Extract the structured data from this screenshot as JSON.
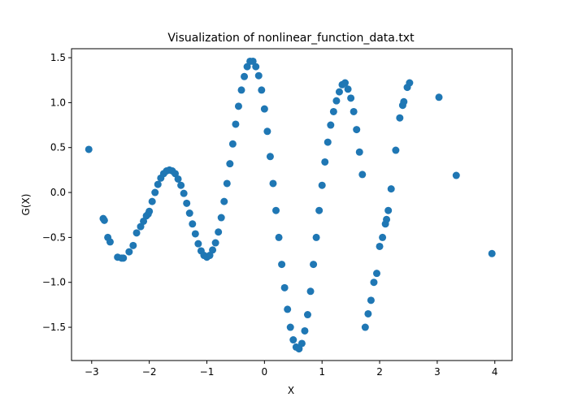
{
  "chart_data": {
    "type": "scatter",
    "title": "Visualization of nonlinear_function_data.txt",
    "xlabel": "X",
    "ylabel": "G(X)",
    "xlim": [
      -3.35,
      4.3
    ],
    "ylim": [
      -1.87,
      1.6
    ],
    "xticks": [
      -3,
      -2,
      -1,
      0,
      1,
      2,
      3,
      4
    ],
    "xtick_labels": [
      "−3",
      "−2",
      "−1",
      "0",
      "1",
      "2",
      "3",
      "4"
    ],
    "yticks": [
      -1.5,
      -1.0,
      -0.5,
      0.0,
      0.5,
      1.0,
      1.5
    ],
    "ytick_labels": [
      "−1.5",
      "−1.0",
      "−0.5",
      "0.0",
      "0.5",
      "1.0",
      "1.5"
    ],
    "grid": false,
    "marker_color": "#1f77b4",
    "series": [
      {
        "x": [
          -3.05,
          -2.8,
          -2.78,
          -2.72,
          -2.68,
          -2.55,
          -2.48,
          -2.45,
          -2.35,
          -2.28,
          -2.22,
          -2.15,
          -2.1,
          -2.05,
          -2.02,
          -2.0,
          -1.95,
          -1.9,
          -1.85,
          -1.8,
          -1.75,
          -1.7,
          -1.65,
          -1.6,
          -1.55,
          -1.5,
          -1.45,
          -1.4,
          -1.35,
          -1.3,
          -1.25,
          -1.2,
          -1.15,
          -1.1,
          -1.05,
          -1.0,
          -0.95,
          -0.9,
          -0.85,
          -0.8,
          -0.75,
          -0.7,
          -0.65,
          -0.6,
          -0.55,
          -0.5,
          -0.45,
          -0.4,
          -0.35,
          -0.3,
          -0.25,
          -0.2,
          -0.15,
          -0.1,
          -0.05,
          0.0,
          0.05,
          0.1,
          0.15,
          0.2,
          0.25,
          0.3,
          0.35,
          0.4,
          0.45,
          0.5,
          0.55,
          0.6,
          0.65,
          0.7,
          0.75,
          0.8,
          0.85,
          0.9,
          0.95,
          1.0,
          1.05,
          1.1,
          1.15,
          1.2,
          1.25,
          1.3,
          1.35,
          1.4,
          1.45,
          1.5,
          1.55,
          1.6,
          1.65,
          1.7,
          1.75,
          1.8,
          1.85,
          1.9,
          1.95,
          2.0,
          2.05,
          2.1,
          2.12,
          2.15,
          2.2,
          2.28,
          2.35,
          2.4,
          2.42,
          2.48,
          2.52,
          3.03,
          3.33,
          3.95
        ],
        "y": [
          0.48,
          -0.29,
          -0.31,
          -0.5,
          -0.55,
          -0.72,
          -0.73,
          -0.73,
          -0.66,
          -0.59,
          -0.45,
          -0.38,
          -0.32,
          -0.26,
          -0.24,
          -0.21,
          -0.1,
          0.0,
          0.09,
          0.16,
          0.21,
          0.24,
          0.25,
          0.24,
          0.21,
          0.15,
          0.08,
          -0.01,
          -0.12,
          -0.23,
          -0.35,
          -0.46,
          -0.57,
          -0.65,
          -0.7,
          -0.72,
          -0.7,
          -0.64,
          -0.56,
          -0.44,
          -0.28,
          -0.1,
          0.1,
          0.32,
          0.54,
          0.76,
          0.96,
          1.14,
          1.29,
          1.4,
          1.46,
          1.46,
          1.4,
          1.3,
          1.14,
          0.93,
          0.68,
          0.4,
          0.1,
          -0.2,
          -0.5,
          -0.8,
          -1.06,
          -1.3,
          -1.5,
          -1.64,
          -1.72,
          -1.74,
          -1.68,
          -1.54,
          -1.36,
          -1.1,
          -0.8,
          -0.5,
          -0.2,
          0.08,
          0.34,
          0.56,
          0.75,
          0.9,
          1.02,
          1.12,
          1.2,
          1.22,
          1.15,
          1.05,
          0.9,
          0.7,
          0.45,
          0.2,
          -1.5,
          -1.35,
          -1.2,
          -1.0,
          -0.9,
          -0.6,
          -0.5,
          -0.35,
          -0.3,
          -0.2,
          0.04,
          0.47,
          0.83,
          0.97,
          1.01,
          1.17,
          1.22,
          1.06,
          0.19,
          -0.68
        ]
      }
    ]
  }
}
